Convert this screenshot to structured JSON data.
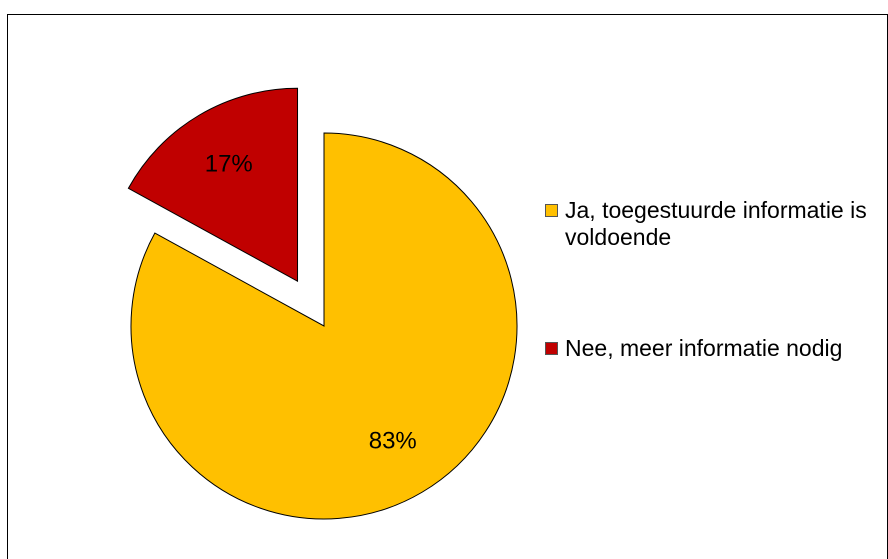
{
  "chart_data": {
    "type": "pie",
    "categories": [
      "Ja, toegestuurde informatie is voldoende",
      "Nee, meer informatie nodig"
    ],
    "values": [
      83,
      17
    ],
    "value_labels": [
      "83%",
      "17%"
    ],
    "colors": [
      "#FFC000",
      "#C00000"
    ],
    "exploded": [
      false,
      true
    ],
    "legend": "right"
  }
}
